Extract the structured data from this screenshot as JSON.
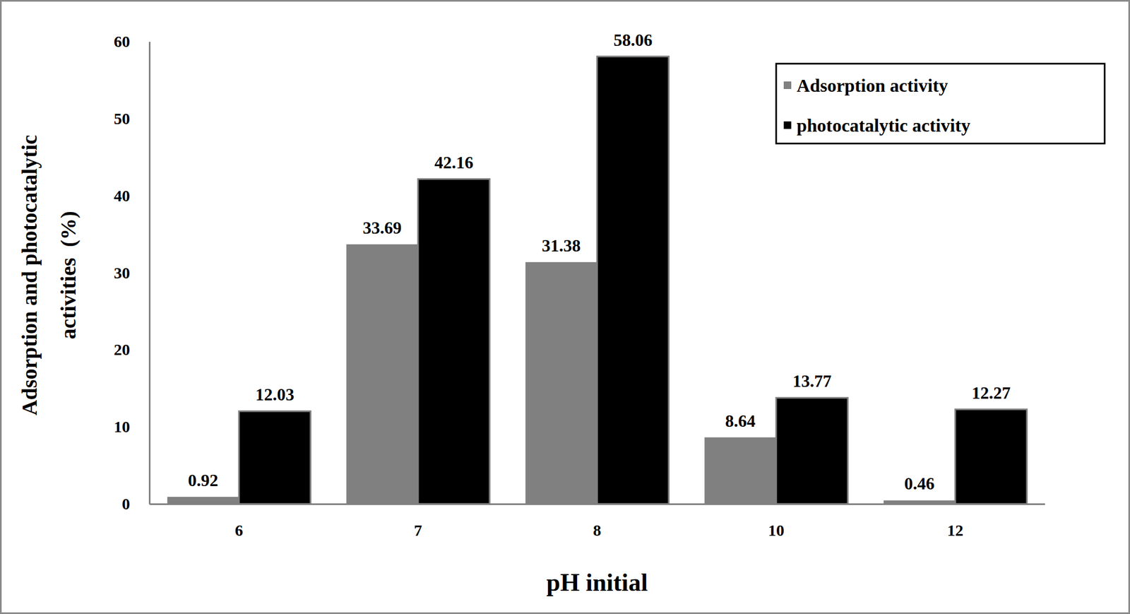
{
  "chart_data": {
    "type": "bar",
    "x_label": "pH initial",
    "y_label": [
      "Adsorption and photocatalytic",
      "activities  (%)"
    ],
    "categories": [
      "6",
      "7",
      "8",
      "10",
      "12"
    ],
    "series": [
      {
        "name": "Adsorption activity",
        "color": "#808080",
        "values": [
          0.92,
          33.69,
          31.38,
          8.64,
          0.46
        ]
      },
      {
        "name": "photocatalytic activity",
        "color": "#000000",
        "values": [
          12.03,
          42.16,
          58.06,
          13.77,
          12.27
        ]
      }
    ],
    "ylim": [
      0,
      60
    ],
    "yticks": [
      0,
      10,
      20,
      30,
      40,
      50,
      60
    ],
    "grid": false,
    "legend": "top-right",
    "data_labels": true
  }
}
